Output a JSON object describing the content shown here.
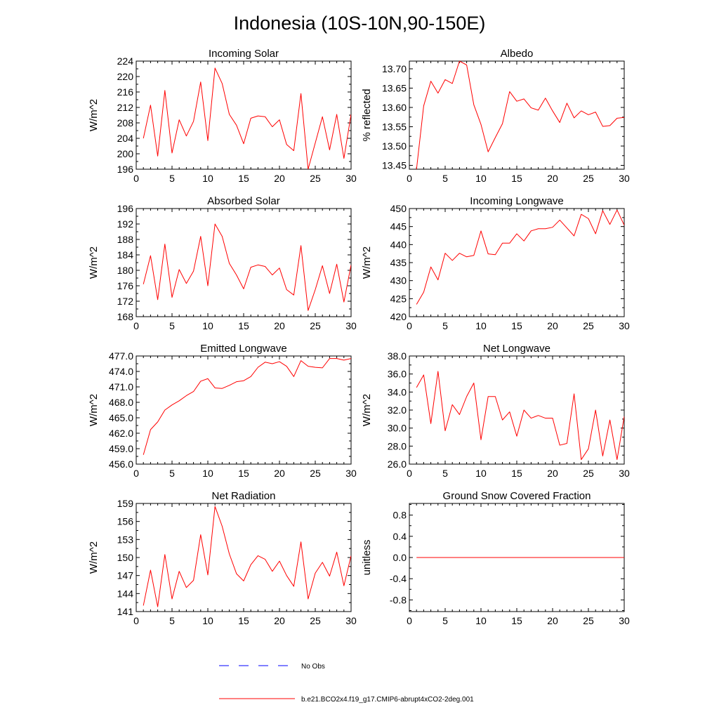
{
  "figure": {
    "title": "Indonesia (10S-10N,90-150E)",
    "line_color": "#ff0000",
    "obs_color": "#0000ff"
  },
  "legend": {
    "entries": [
      {
        "label": "No Obs",
        "style": "dashed",
        "color": "#0000ff"
      },
      {
        "label": "b.e21.BCO2x4.f19_g17.CMIP6-abrupt4xCO2-2deg.001",
        "style": "solid",
        "color": "#ff0000"
      }
    ]
  },
  "chart_data": [
    {
      "type": "line",
      "title": "Incoming Solar",
      "xlabel": "",
      "ylabel": "W/m^2",
      "xlim": [
        0,
        30
      ],
      "ylim": [
        196,
        224
      ],
      "xticks": [
        0,
        5,
        10,
        15,
        20,
        25,
        30
      ],
      "yticks": [
        196,
        200,
        204,
        208,
        212,
        216,
        220,
        224
      ],
      "ytick_labels": [
        "196",
        "200",
        "204",
        "208",
        "212",
        "216",
        "220",
        "224"
      ],
      "x": [
        1,
        2,
        3,
        4,
        5,
        6,
        7,
        8,
        9,
        10,
        11,
        12,
        13,
        14,
        15,
        16,
        17,
        18,
        19,
        20,
        21,
        22,
        23,
        24,
        25,
        26,
        27,
        28,
        29,
        30
      ],
      "series": [
        {
          "name": "b.e21.BCO2x4.f19_g17.CMIP6-abrupt4xCO2-2deg.001",
          "values": [
            204.0,
            212.6,
            199.4,
            216.4,
            200.2,
            208.8,
            204.6,
            208.4,
            218.6,
            203.4,
            222.2,
            218.2,
            210.2,
            207.4,
            202.6,
            209.2,
            209.8,
            209.6,
            207.0,
            208.8,
            202.4,
            200.8,
            215.6,
            196.0,
            202.8,
            209.6,
            201.0,
            210.2,
            198.8,
            210.2
          ]
        }
      ]
    },
    {
      "type": "line",
      "title": "Albedo",
      "xlabel": "",
      "ylabel": "% reflected",
      "xlim": [
        0,
        30
      ],
      "ylim": [
        13.44,
        13.72
      ],
      "xticks": [
        0,
        5,
        10,
        15,
        20,
        25,
        30
      ],
      "yticks": [
        13.45,
        13.5,
        13.55,
        13.6,
        13.65,
        13.7
      ],
      "ytick_labels": [
        "13.45",
        "13.50",
        "13.55",
        "13.60",
        "13.65",
        "13.70"
      ],
      "x": [
        1,
        2,
        3,
        4,
        5,
        6,
        7,
        8,
        9,
        10,
        11,
        12,
        13,
        14,
        15,
        16,
        17,
        18,
        19,
        20,
        21,
        22,
        23,
        24,
        25,
        26,
        27,
        28,
        29,
        30
      ],
      "series": [
        {
          "name": "b.e21.BCO2x4.f19_g17.CMIP6-abrupt4xCO2-2deg.001",
          "values": [
            13.44,
            13.604,
            13.668,
            13.637,
            13.672,
            13.662,
            13.72,
            13.71,
            13.607,
            13.556,
            13.485,
            13.522,
            13.558,
            13.641,
            13.616,
            13.622,
            13.599,
            13.593,
            13.624,
            13.591,
            13.561,
            13.611,
            13.573,
            13.591,
            13.581,
            13.588,
            13.551,
            13.553,
            13.572,
            13.574
          ]
        }
      ]
    },
    {
      "type": "line",
      "title": "Absorbed Solar",
      "xlabel": "",
      "ylabel": "W/m^2",
      "xlim": [
        0,
        30
      ],
      "ylim": [
        168,
        196
      ],
      "xticks": [
        0,
        5,
        10,
        15,
        20,
        25,
        30
      ],
      "yticks": [
        168,
        172,
        176,
        180,
        184,
        188,
        192,
        196
      ],
      "ytick_labels": [
        "168",
        "172",
        "176",
        "180",
        "184",
        "188",
        "192",
        "196"
      ],
      "x": [
        1,
        2,
        3,
        4,
        5,
        6,
        7,
        8,
        9,
        10,
        11,
        12,
        13,
        14,
        15,
        16,
        17,
        18,
        19,
        20,
        21,
        22,
        23,
        24,
        25,
        26,
        27,
        28,
        29,
        30
      ],
      "series": [
        {
          "name": "b.e21.BCO2x4.f19_g17.CMIP6-abrupt4xCO2-2deg.001",
          "values": [
            176.4,
            183.8,
            172.4,
            186.8,
            173.0,
            180.2,
            176.6,
            179.8,
            188.8,
            176.0,
            192.0,
            188.8,
            181.8,
            178.8,
            175.2,
            180.8,
            181.4,
            181.0,
            178.8,
            180.6,
            175.0,
            173.6,
            186.4,
            169.6,
            175.0,
            181.2,
            174.0,
            181.6,
            171.8,
            181.4
          ]
        }
      ]
    },
    {
      "type": "line",
      "title": "Incoming Longwave",
      "xlabel": "",
      "ylabel": "W/m^2",
      "xlim": [
        0,
        30
      ],
      "ylim": [
        420,
        450
      ],
      "xticks": [
        0,
        5,
        10,
        15,
        20,
        25,
        30
      ],
      "yticks": [
        420,
        425,
        430,
        435,
        440,
        445,
        450
      ],
      "ytick_labels": [
        "420",
        "425",
        "430",
        "435",
        "440",
        "445",
        "450"
      ],
      "x": [
        1,
        2,
        3,
        4,
        5,
        6,
        7,
        8,
        9,
        10,
        11,
        12,
        13,
        14,
        15,
        16,
        17,
        18,
        19,
        20,
        21,
        22,
        23,
        24,
        25,
        26,
        27,
        28,
        29,
        30
      ],
      "series": [
        {
          "name": "b.e21.BCO2x4.f19_g17.CMIP6-abrupt4xCO2-2deg.001",
          "values": [
            423.4,
            426.8,
            433.8,
            430.2,
            437.6,
            435.6,
            437.6,
            436.6,
            437.0,
            443.8,
            437.4,
            437.2,
            440.4,
            440.4,
            443.0,
            441.0,
            443.8,
            444.4,
            444.4,
            444.8,
            446.8,
            444.6,
            442.4,
            448.4,
            447.2,
            443.0,
            449.4,
            445.6,
            449.6,
            445.4
          ]
        }
      ]
    },
    {
      "type": "line",
      "title": "Emitted Longwave",
      "xlabel": "",
      "ylabel": "W/m^2",
      "xlim": [
        0,
        30
      ],
      "ylim": [
        456,
        477
      ],
      "xticks": [
        0,
        5,
        10,
        15,
        20,
        25,
        30
      ],
      "yticks": [
        456,
        459,
        462,
        465,
        468,
        471,
        474,
        477
      ],
      "ytick_labels": [
        "456.0",
        "459.0",
        "462.0",
        "465.0",
        "468.0",
        "471.0",
        "474.0",
        "477.0"
      ],
      "x": [
        1,
        2,
        3,
        4,
        5,
        6,
        7,
        8,
        9,
        10,
        11,
        12,
        13,
        14,
        15,
        16,
        17,
        18,
        19,
        20,
        21,
        22,
        23,
        24,
        25,
        26,
        27,
        28,
        29,
        30
      ],
      "series": [
        {
          "name": "b.e21.BCO2x4.f19_g17.CMIP6-abrupt4xCO2-2deg.001",
          "values": [
            457.8,
            462.7,
            464.2,
            466.5,
            467.5,
            468.3,
            469.3,
            470.1,
            472.1,
            472.6,
            470.8,
            470.7,
            471.3,
            472.0,
            472.2,
            473.0,
            474.8,
            475.8,
            475.5,
            475.9,
            475.0,
            473.0,
            476.1,
            475.0,
            474.8,
            474.7,
            476.5,
            476.5,
            476.2,
            476.5
          ]
        }
      ]
    },
    {
      "type": "line",
      "title": "Net Longwave",
      "xlabel": "",
      "ylabel": "W/m^2",
      "xlim": [
        0,
        30
      ],
      "ylim": [
        26,
        38
      ],
      "xticks": [
        0,
        5,
        10,
        15,
        20,
        25,
        30
      ],
      "yticks": [
        26,
        28,
        30,
        32,
        34,
        36,
        38
      ],
      "ytick_labels": [
        "26.0",
        "28.0",
        "30.0",
        "32.0",
        "34.0",
        "36.0",
        "38.0"
      ],
      "x": [
        1,
        2,
        3,
        4,
        5,
        6,
        7,
        8,
        9,
        10,
        11,
        12,
        13,
        14,
        15,
        16,
        17,
        18,
        19,
        20,
        21,
        22,
        23,
        24,
        25,
        26,
        27,
        28,
        29,
        30
      ],
      "series": [
        {
          "name": "b.e21.BCO2x4.f19_g17.CMIP6-abrupt4xCO2-2deg.001",
          "values": [
            34.5,
            35.9,
            30.5,
            36.3,
            29.7,
            32.6,
            31.5,
            33.5,
            35.0,
            28.7,
            33.5,
            33.5,
            30.9,
            31.8,
            29.1,
            32.0,
            31.1,
            31.4,
            31.1,
            31.1,
            28.1,
            28.3,
            33.8,
            26.5,
            27.7,
            32.0,
            26.9,
            30.9,
            26.5,
            31.3
          ]
        }
      ]
    },
    {
      "type": "line",
      "title": "Net Radiation",
      "xlabel": "",
      "ylabel": "W/m^2",
      "xlim": [
        0,
        30
      ],
      "ylim": [
        141,
        159
      ],
      "xticks": [
        0,
        5,
        10,
        15,
        20,
        25,
        30
      ],
      "yticks": [
        141,
        144,
        147,
        150,
        153,
        156,
        159
      ],
      "ytick_labels": [
        "141",
        "144",
        "147",
        "150",
        "153",
        "156",
        "159"
      ],
      "x": [
        1,
        2,
        3,
        4,
        5,
        6,
        7,
        8,
        9,
        10,
        11,
        12,
        13,
        14,
        15,
        16,
        17,
        18,
        19,
        20,
        21,
        22,
        23,
        24,
        25,
        26,
        27,
        28,
        29,
        30
      ],
      "series": [
        {
          "name": "b.e21.BCO2x4.f19_g17.CMIP6-abrupt4xCO2-2deg.001",
          "values": [
            142.0,
            147.9,
            141.8,
            150.5,
            143.1,
            147.7,
            145.0,
            146.2,
            153.8,
            147.1,
            158.5,
            155.2,
            150.6,
            147.3,
            146.1,
            148.8,
            150.3,
            149.7,
            147.7,
            149.4,
            147.0,
            145.2,
            152.6,
            143.1,
            147.4,
            149.2,
            146.9,
            150.9,
            145.3,
            150.3
          ]
        }
      ]
    },
    {
      "type": "line",
      "title": "Ground Snow Covered Fraction",
      "xlabel": "",
      "ylabel": "unitless",
      "xlim": [
        0,
        30
      ],
      "ylim": [
        -1.02,
        1.02
      ],
      "xticks": [
        0,
        5,
        10,
        15,
        20,
        25,
        30
      ],
      "yticks": [
        -0.8,
        -0.4,
        0.0,
        0.4,
        0.8
      ],
      "ytick_labels": [
        "-0.8",
        "-0.4",
        "0.0",
        "0.4",
        "0.8"
      ],
      "x": [
        1,
        2,
        3,
        4,
        5,
        6,
        7,
        8,
        9,
        10,
        11,
        12,
        13,
        14,
        15,
        16,
        17,
        18,
        19,
        20,
        21,
        22,
        23,
        24,
        25,
        26,
        27,
        28,
        29,
        30
      ],
      "series": [
        {
          "name": "b.e21.BCO2x4.f19_g17.CMIP6-abrupt4xCO2-2deg.001",
          "values": [
            0,
            0,
            0,
            0,
            0,
            0,
            0,
            0,
            0,
            0,
            0,
            0,
            0,
            0,
            0,
            0,
            0,
            0,
            0,
            0,
            0,
            0,
            0,
            0,
            0,
            0,
            0,
            0,
            0,
            0
          ]
        }
      ]
    }
  ]
}
